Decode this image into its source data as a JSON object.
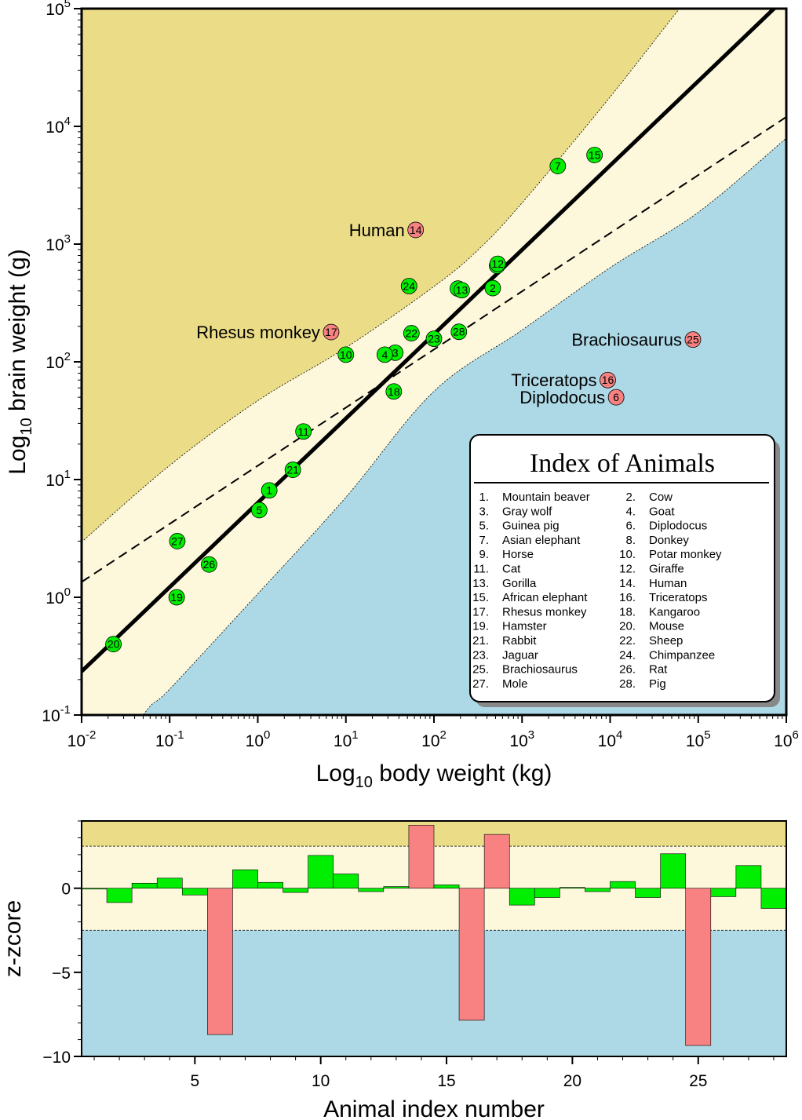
{
  "chart_data": [
    {
      "type": "scatter",
      "xlabel_main": "Log",
      "xlabel_sub": "10",
      "xlabel_rest": " body weight (kg)",
      "ylabel_main": "Log",
      "ylabel_sub": "10",
      "ylabel_rest": " brain weight (g)",
      "x_scale": "log",
      "y_scale": "log",
      "xlim": [
        0.01,
        1000000
      ],
      "ylim": [
        0.1,
        100000
      ],
      "x_ticks": [
        {
          "base": "10",
          "exp": "-2"
        },
        {
          "base": "10",
          "exp": "-1"
        },
        {
          "base": "10",
          "exp": "0"
        },
        {
          "base": "10",
          "exp": "1"
        },
        {
          "base": "10",
          "exp": "2"
        },
        {
          "base": "10",
          "exp": "3"
        },
        {
          "base": "10",
          "exp": "4"
        },
        {
          "base": "10",
          "exp": "5"
        },
        {
          "base": "10",
          "exp": "6"
        }
      ],
      "y_ticks": [
        {
          "base": "10",
          "exp": "-1"
        },
        {
          "base": "10",
          "exp": "0"
        },
        {
          "base": "10",
          "exp": "1"
        },
        {
          "base": "10",
          "exp": "2"
        },
        {
          "base": "10",
          "exp": "3"
        },
        {
          "base": "10",
          "exp": "4"
        },
        {
          "base": "10",
          "exp": "5"
        }
      ],
      "fit_line": {
        "log_x": [
          -2,
          6
        ],
        "log_y": [
          -0.63,
          5.1
        ]
      },
      "ls_line": {
        "log_x": [
          -2,
          6
        ],
        "log_y": [
          0.13,
          4.08
        ]
      },
      "band_upper": {
        "log_x": [
          -2,
          -1,
          0,
          1,
          2,
          2.5,
          3,
          4,
          5,
          6
        ],
        "log_y": [
          0.47,
          1.12,
          1.67,
          2.12,
          2.64,
          2.95,
          3.35,
          4.25,
          5.2,
          6.1
        ]
      },
      "band_lower": {
        "log_x": [
          -2,
          -1.3,
          -1,
          0,
          1,
          2,
          3,
          4,
          5,
          6
        ],
        "log_y": [
          -1.8,
          -1.0,
          -0.78,
          0.03,
          0.85,
          1.75,
          2.27,
          2.8,
          3.27,
          3.9
        ]
      },
      "colors": {
        "upper_region": "#ebdc87",
        "band": "#fdf8dc",
        "lower_region": "#add8e6",
        "normal": "#00ee00",
        "outlier": "#f88282"
      },
      "points": [
        {
          "id": "1",
          "x": 1.35,
          "y": 8.1,
          "outlier": false
        },
        {
          "id": "2",
          "x": 465,
          "y": 423,
          "outlier": false
        },
        {
          "id": "3",
          "x": 36.33,
          "y": 119.5,
          "outlier": false
        },
        {
          "id": "4",
          "x": 27.66,
          "y": 115,
          "outlier": false
        },
        {
          "id": "5",
          "x": 1.04,
          "y": 5.5,
          "outlier": false
        },
        {
          "id": "6",
          "x": 11700,
          "y": 50,
          "outlier": true
        },
        {
          "id": "7",
          "x": 2547,
          "y": 4603,
          "outlier": false
        },
        {
          "id": "8",
          "x": 187.1,
          "y": 419,
          "outlier": false
        },
        {
          "id": "9",
          "x": 521,
          "y": 655,
          "outlier": false
        },
        {
          "id": "10",
          "x": 10,
          "y": 115,
          "outlier": false
        },
        {
          "id": "11",
          "x": 3.3,
          "y": 25.6,
          "outlier": false
        },
        {
          "id": "12",
          "x": 529,
          "y": 680,
          "outlier": false
        },
        {
          "id": "13",
          "x": 207,
          "y": 406,
          "outlier": false
        },
        {
          "id": "14",
          "x": 62,
          "y": 1320,
          "outlier": true
        },
        {
          "id": "15",
          "x": 6654,
          "y": 5712,
          "outlier": false
        },
        {
          "id": "16",
          "x": 9400,
          "y": 70,
          "outlier": true
        },
        {
          "id": "17",
          "x": 6.8,
          "y": 179,
          "outlier": true
        },
        {
          "id": "18",
          "x": 35,
          "y": 56,
          "outlier": false
        },
        {
          "id": "19",
          "x": 0.12,
          "y": 1,
          "outlier": false
        },
        {
          "id": "20",
          "x": 0.023,
          "y": 0.4,
          "outlier": false
        },
        {
          "id": "21",
          "x": 2.5,
          "y": 12.1,
          "outlier": false
        },
        {
          "id": "22",
          "x": 55.5,
          "y": 175,
          "outlier": false
        },
        {
          "id": "23",
          "x": 100,
          "y": 157,
          "outlier": false
        },
        {
          "id": "24",
          "x": 52.16,
          "y": 440,
          "outlier": false
        },
        {
          "id": "25",
          "x": 87000,
          "y": 154.5,
          "outlier": true
        },
        {
          "id": "26",
          "x": 0.28,
          "y": 1.9,
          "outlier": false
        },
        {
          "id": "27",
          "x": 0.122,
          "y": 3,
          "outlier": false
        },
        {
          "id": "28",
          "x": 192,
          "y": 180,
          "outlier": false
        }
      ],
      "annotations": [
        {
          "text": "Human",
          "for": "14"
        },
        {
          "text": "Rhesus monkey",
          "for": "17"
        },
        {
          "text": "Brachiosaurus",
          "for": "25"
        },
        {
          "text": "Triceratops",
          "for": "16"
        },
        {
          "text": "Diplodocus",
          "for": "6"
        }
      ],
      "legend": {
        "title": "Index of Animals",
        "placement": "bottom-right",
        "items": [
          {
            "num": "1.",
            "name": "Mountain beaver"
          },
          {
            "num": "2.",
            "name": "Cow"
          },
          {
            "num": "3.",
            "name": "Gray wolf"
          },
          {
            "num": "4.",
            "name": "Goat"
          },
          {
            "num": "5.",
            "name": "Guinea pig"
          },
          {
            "num": "6.",
            "name": "Diplodocus"
          },
          {
            "num": "7.",
            "name": "Asian elephant"
          },
          {
            "num": "8.",
            "name": "Donkey"
          },
          {
            "num": "9.",
            "name": "Horse"
          },
          {
            "num": "10.",
            "name": "Potar monkey"
          },
          {
            "num": "11.",
            "name": "Cat"
          },
          {
            "num": "12.",
            "name": "Giraffe"
          },
          {
            "num": "13.",
            "name": "Gorilla"
          },
          {
            "num": "14.",
            "name": "Human"
          },
          {
            "num": "15.",
            "name": "African elephant"
          },
          {
            "num": "16.",
            "name": "Triceratops"
          },
          {
            "num": "17.",
            "name": "Rhesus monkey"
          },
          {
            "num": "18.",
            "name": "Kangaroo"
          },
          {
            "num": "19.",
            "name": "Hamster"
          },
          {
            "num": "20.",
            "name": "Mouse"
          },
          {
            "num": "21.",
            "name": "Rabbit"
          },
          {
            "num": "22.",
            "name": "Sheep"
          },
          {
            "num": "23.",
            "name": "Jaguar"
          },
          {
            "num": "24.",
            "name": "Chimpanzee"
          },
          {
            "num": "25.",
            "name": "Brachiosaurus"
          },
          {
            "num": "26.",
            "name": "Rat"
          },
          {
            "num": "27.",
            "name": "Mole"
          },
          {
            "num": "28.",
            "name": "Pig"
          }
        ]
      }
    },
    {
      "type": "bar",
      "xlabel": "Animal index number",
      "ylabel": "z-zcore",
      "xlim": [
        0.5,
        28.5
      ],
      "ylim": [
        -10,
        4
      ],
      "x_ticks": [
        "5",
        "10",
        "15",
        "20",
        "25"
      ],
      "x_tick_values": [
        5,
        10,
        15,
        20,
        25
      ],
      "y_ticks": [
        "0",
        "−5",
        "−10"
      ],
      "y_tick_values": [
        0,
        -5,
        -10
      ],
      "threshold": 2.5,
      "categories": [
        1,
        2,
        3,
        4,
        5,
        6,
        7,
        8,
        9,
        10,
        11,
        12,
        13,
        14,
        15,
        16,
        17,
        18,
        19,
        20,
        21,
        22,
        23,
        24,
        25,
        26,
        27,
        28
      ],
      "values": [
        -0.05,
        -0.85,
        0.3,
        0.6,
        -0.4,
        -8.7,
        1.1,
        0.35,
        -0.25,
        1.95,
        0.85,
        -0.2,
        0.1,
        3.75,
        0.2,
        -7.85,
        3.2,
        -1.0,
        -0.55,
        0.05,
        -0.2,
        0.4,
        -0.55,
        2.05,
        -9.35,
        -0.5,
        1.35,
        -1.2
      ],
      "outliers": [
        6,
        14,
        16,
        17,
        25
      ]
    }
  ]
}
